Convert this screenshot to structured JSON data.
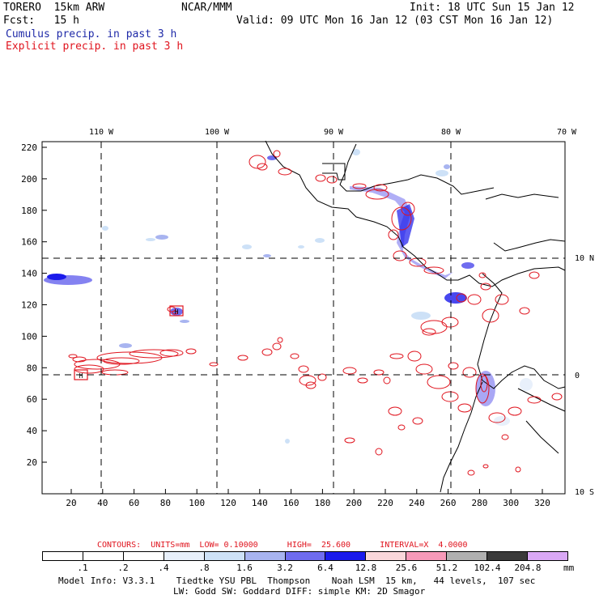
{
  "header": {
    "model": "TORERO  15km ARW",
    "center": "NCAR/MMM",
    "init": "Init: 18 UTC Sun 15 Jan 12",
    "fcst": "Fcst:   15 h",
    "valid": "Valid: 09 UTC Mon 16 Jan 12 (03 CST Mon 16 Jan 12)",
    "legend_cumulus": "Cumulus precip. in past 3 h",
    "legend_explicit": "Explicit precip. in past 3 h"
  },
  "map": {
    "top_labels": [
      "110 W",
      "100 W",
      "90 W",
      "80 W",
      "70 W"
    ],
    "right_labels": [
      "10 N",
      "0",
      "10 S"
    ],
    "y_ticks": [
      "220",
      "200",
      "180",
      "160",
      "140",
      "120",
      "100",
      "80",
      "60",
      "40",
      "20"
    ],
    "x_ticks": [
      "20",
      "40",
      "60",
      "80",
      "100",
      "120",
      "140",
      "160",
      "180",
      "200",
      "220",
      "240",
      "260",
      "280",
      "300",
      "320"
    ],
    "box_labels": [
      "H",
      "H"
    ]
  },
  "contours_text": "CONTOURS:  UNITS=mm  LOW= 0.10000      HIGH=  25.600      INTERVAL=X  4.0000",
  "colorbar": {
    "labels": [
      ".1",
      ".2",
      ".4",
      ".8",
      "1.6",
      "3.2",
      "6.4",
      "12.8",
      "25.6",
      "51.2",
      "102.4",
      "204.8"
    ],
    "unit": "mm",
    "colors": [
      "#ffffff",
      "#ffffff",
      "#ffffff",
      "#e8f0fb",
      "#cde1f7",
      "#a8b4f0",
      "#6f6cef",
      "#1a1aeb",
      "#f9d7da",
      "#f79ab9",
      "#b0b0b0",
      "#3a3a3a",
      "#d9a8f5"
    ]
  },
  "footer": {
    "line1": "Model Info: V3.3.1    Tiedtke YSU PBL  Thompson    Noah LSM  15 km,   44 levels,  107 sec",
    "line2": "LW: Godd SW: Goddard DIFF: simple KM: 2D Smagor"
  }
}
